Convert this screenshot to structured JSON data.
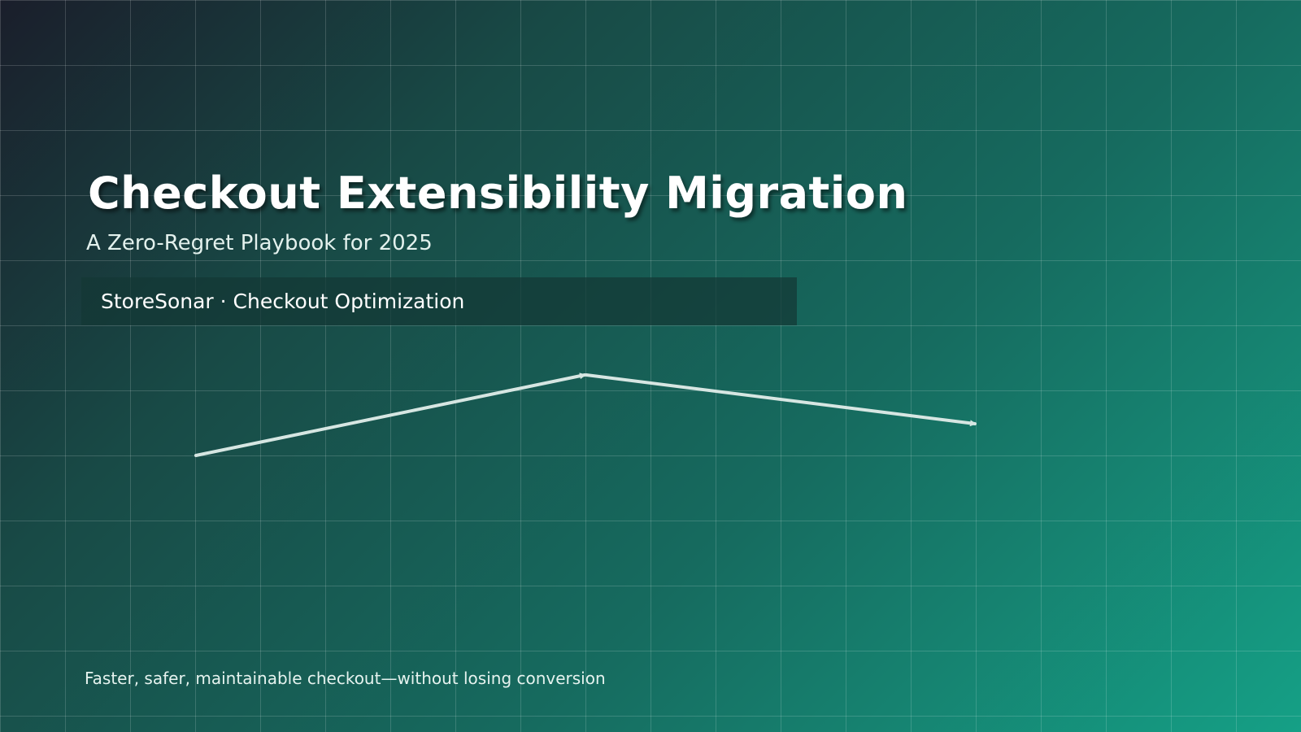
{
  "slide": {
    "title": "Checkout Extensibility Migration",
    "subtitle": "A Zero-Regret Playbook for 2025",
    "brand_line": "StoreSonar · Checkout Optimization",
    "tagline": "Faster, safer, maintainable checkout—without losing conversion"
  },
  "colors": {
    "gradient_start": "#1a1e2b",
    "gradient_mid": "#166b5f",
    "gradient_end": "#15a086",
    "arrow": "#d6e6e2",
    "title_text": "#ffffff"
  },
  "icons": {
    "arrow_up": "arrow-rising-icon",
    "arrow_down": "arrow-falling-icon"
  }
}
